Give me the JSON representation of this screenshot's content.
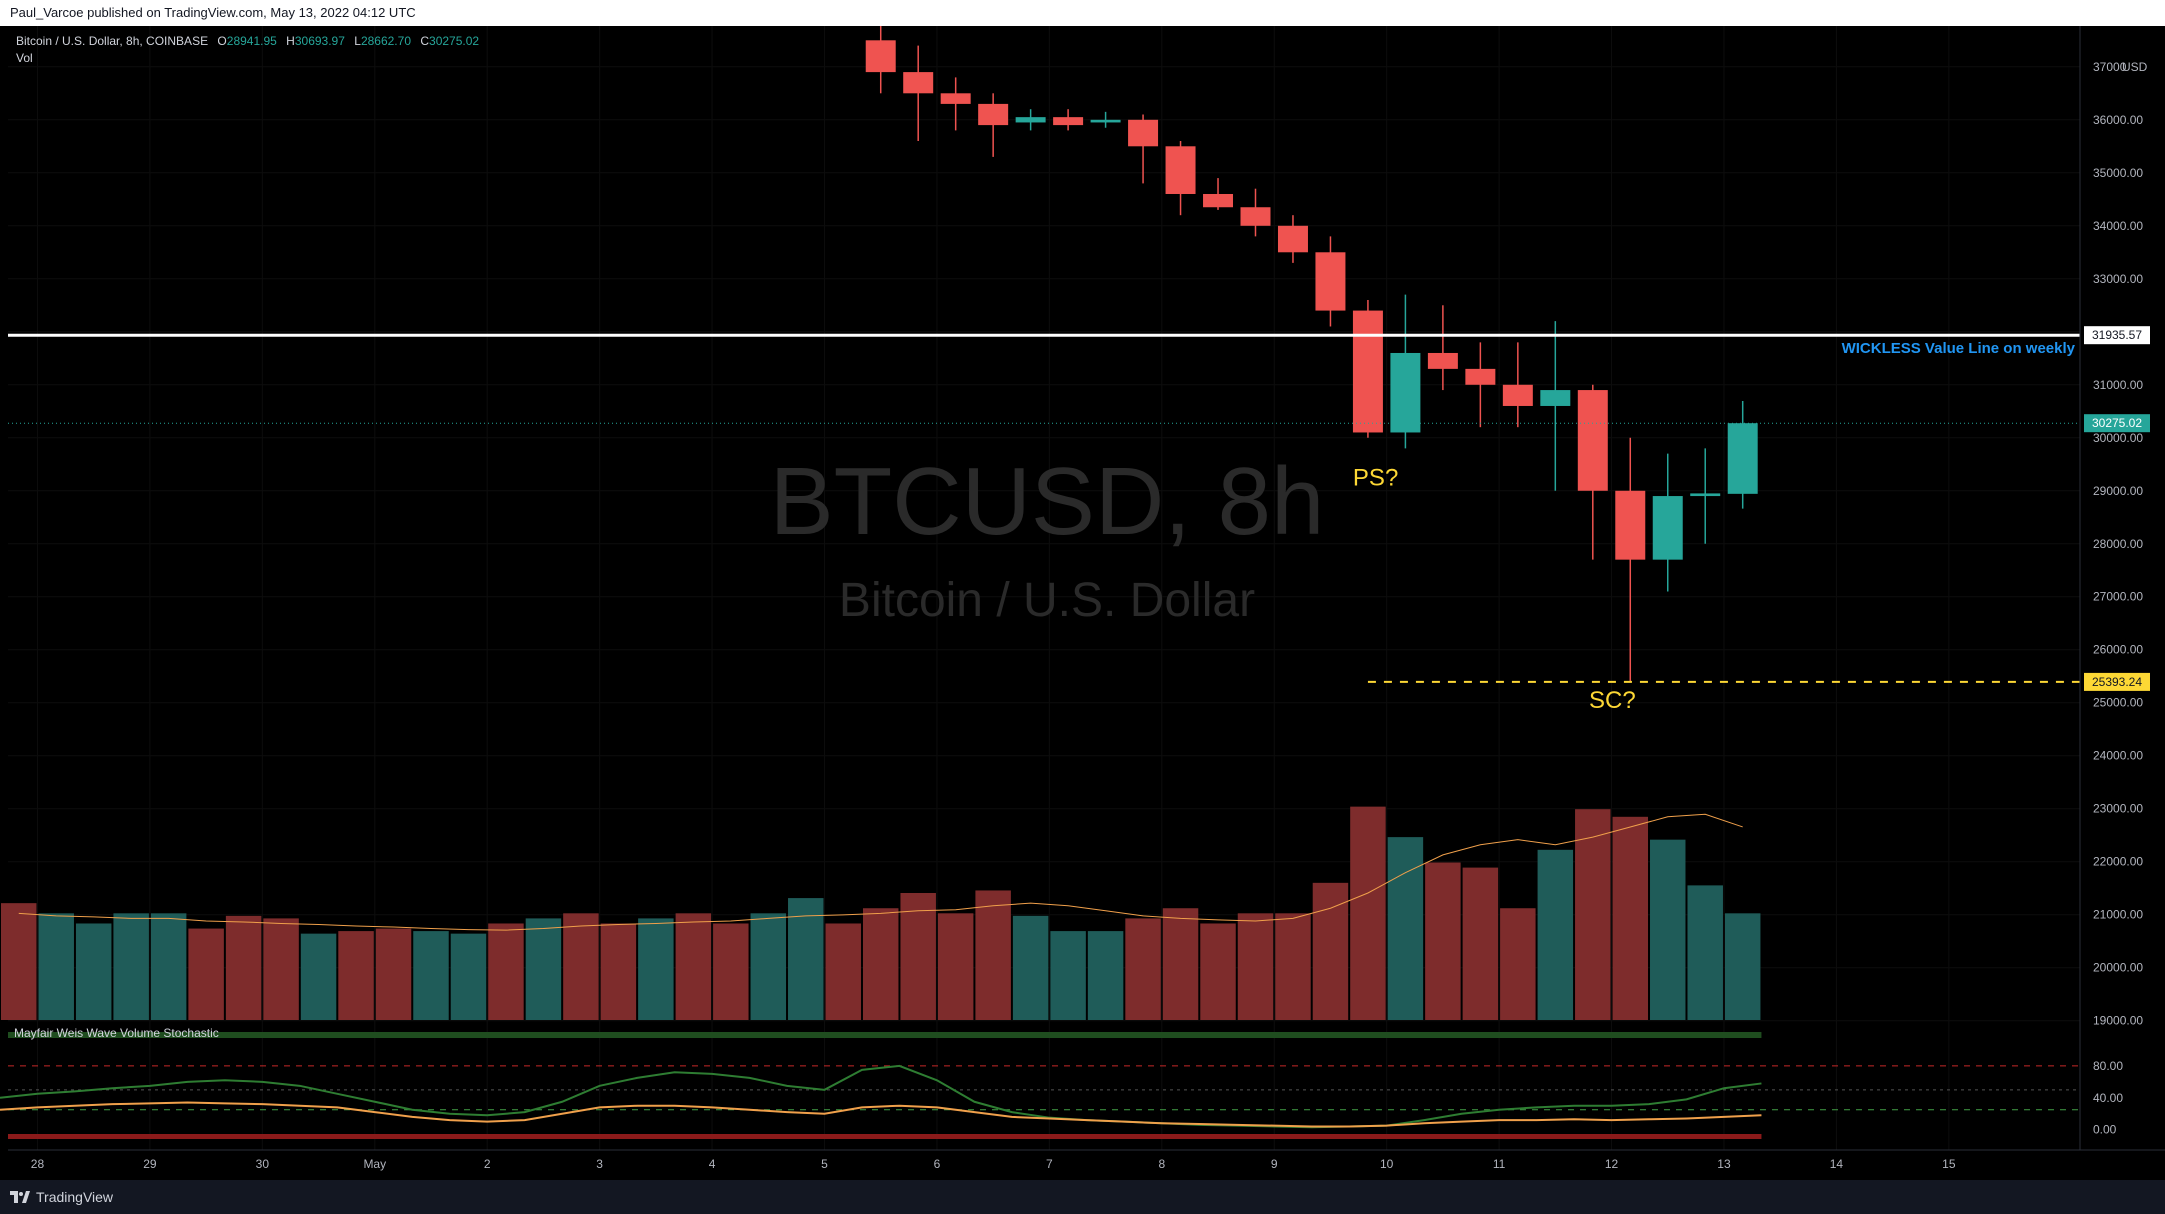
{
  "publisher_line": "Paul_Varcoe published on TradingView.com, May 13, 2022 04:12 UTC",
  "footer_brand": "TradingView",
  "colors": {
    "bull": "#26a69a",
    "bear": "#ef5350",
    "bull_vol": "#1f5c59",
    "bear_vol": "#7e2c2c",
    "vol_ma": "#f0a04b",
    "annot": "#fdd835",
    "value_line": "#ffffff",
    "blue_text": "#2196f3"
  },
  "chart_data": [
    {
      "type": "candlestick",
      "symbol_line": "Bitcoin / U.S. Dollar, 8h, COINBASE",
      "ohlc_labels": {
        "O": "28941.95",
        "H": "30693.97",
        "L": "28662.70",
        "C": "30275.02"
      },
      "watermark_title": "BTCUSD, 8h",
      "watermark_subtitle": "Bitcoin / U.S. Dollar",
      "price_axis_label": "USD",
      "y_ticks": [
        19000,
        20000,
        21000,
        22000,
        23000,
        24000,
        25000,
        26000,
        27000,
        28000,
        29000,
        30000,
        31000,
        32000,
        33000,
        34000,
        35000,
        36000,
        37000
      ],
      "y_tick_labels": [
        "19000.00",
        "20000.00",
        "21000.00",
        "22000.00",
        "23000.00",
        "24000.00",
        "25000.00",
        "26000.00",
        "27000.00",
        "28000.00",
        "29000.00",
        "30000.00",
        "31000.00",
        "32000.00",
        "33000.00",
        "34000.00",
        "35000.00",
        "36000.00",
        "37000"
      ],
      "ylim": [
        18900,
        37770
      ],
      "x_ticks": [
        {
          "label": "28",
          "x": 0.5
        },
        {
          "label": "29",
          "x": 3.5
        },
        {
          "label": "30",
          "x": 6.5
        },
        {
          "label": "May",
          "x": 9.5
        },
        {
          "label": "2",
          "x": 12.5
        },
        {
          "label": "3",
          "x": 15.5
        },
        {
          "label": "4",
          "x": 18.5
        },
        {
          "label": "5",
          "x": 21.5
        },
        {
          "label": "6",
          "x": 24.5
        },
        {
          "label": "7",
          "x": 27.5
        },
        {
          "label": "8",
          "x": 30.5
        },
        {
          "label": "9",
          "x": 33.5
        },
        {
          "label": "10",
          "x": 36.5
        },
        {
          "label": "11",
          "x": 39.5
        },
        {
          "label": "12",
          "x": 42.5
        },
        {
          "label": "13",
          "x": 45.5
        },
        {
          "label": "14",
          "x": 48.5
        },
        {
          "label": "15",
          "x": 51.5
        }
      ],
      "bar_slots": 55.5,
      "candles": [
        {
          "i": 23,
          "o": 37500,
          "h": 37800,
          "l": 36500,
          "c": 36900
        },
        {
          "i": 24,
          "o": 36900,
          "h": 37400,
          "l": 35600,
          "c": 36500
        },
        {
          "i": 25,
          "o": 36500,
          "h": 36800,
          "l": 35800,
          "c": 36300
        },
        {
          "i": 26,
          "o": 36300,
          "h": 36500,
          "l": 35300,
          "c": 35900
        },
        {
          "i": 27,
          "o": 35950,
          "h": 36200,
          "l": 35800,
          "c": 36050
        },
        {
          "i": 28,
          "o": 36050,
          "h": 36200,
          "l": 35800,
          "c": 35900
        },
        {
          "i": 29,
          "o": 35950,
          "h": 36150,
          "l": 35850,
          "c": 36000
        },
        {
          "i": 30,
          "o": 36000,
          "h": 36100,
          "l": 34800,
          "c": 35500
        },
        {
          "i": 31,
          "o": 35500,
          "h": 35600,
          "l": 34200,
          "c": 34600
        },
        {
          "i": 32,
          "o": 34600,
          "h": 34900,
          "l": 34300,
          "c": 34350
        },
        {
          "i": 33,
          "o": 34350,
          "h": 34700,
          "l": 33800,
          "c": 34000
        },
        {
          "i": 34,
          "o": 34000,
          "h": 34200,
          "l": 33300,
          "c": 33500
        },
        {
          "i": 35,
          "o": 33500,
          "h": 33800,
          "l": 32100,
          "c": 32400
        },
        {
          "i": 36,
          "o": 32400,
          "h": 32600,
          "l": 30000,
          "c": 30100
        },
        {
          "i": 37,
          "o": 30100,
          "h": 32700,
          "l": 29800,
          "c": 31600
        },
        {
          "i": 38,
          "o": 31600,
          "h": 32500,
          "l": 30900,
          "c": 31300
        },
        {
          "i": 39,
          "o": 31300,
          "h": 31800,
          "l": 30200,
          "c": 31000
        },
        {
          "i": 40,
          "o": 31000,
          "h": 31800,
          "l": 30200,
          "c": 30600
        },
        {
          "i": 41,
          "o": 30600,
          "h": 32200,
          "l": 29000,
          "c": 30900
        },
        {
          "i": 42,
          "o": 30900,
          "h": 31000,
          "l": 27700,
          "c": 29000
        },
        {
          "i": 43,
          "o": 29000,
          "h": 30000,
          "l": 25400,
          "c": 27700
        },
        {
          "i": 44,
          "o": 27700,
          "h": 29700,
          "l": 27100,
          "c": 28900
        },
        {
          "i": 45,
          "o": 28900,
          "h": 29800,
          "l": 28000,
          "c": 28950
        },
        {
          "i": 46,
          "o": 28942,
          "h": 30694,
          "l": 28663,
          "c": 30275
        }
      ],
      "value_line": {
        "price": 31935.57,
        "label": "31935.57",
        "note": "WICKLESS Value Line on weekly"
      },
      "current_price": {
        "price": 30275.02,
        "label": "30275.02"
      },
      "low_line": {
        "price": 25393.24,
        "label": "25393.24",
        "from_i": 36
      },
      "annotations": [
        {
          "text": "PS?",
          "i": 35.6,
          "price": 29100
        },
        {
          "text": "SC?",
          "i": 41.9,
          "price": 24900
        }
      ]
    },
    {
      "type": "bar",
      "title": "Vol",
      "values": [
        23,
        21,
        19,
        21,
        21,
        18,
        20.5,
        20,
        17,
        17.5,
        18,
        17.5,
        17,
        19,
        20,
        21,
        19,
        20,
        21,
        19,
        21,
        24,
        19,
        22,
        25,
        21,
        25.5,
        20.5,
        17.5,
        17.5,
        20,
        22,
        19,
        21,
        21,
        27,
        42,
        36,
        31,
        30,
        22,
        33.5,
        41.5,
        40,
        35.5,
        26.5,
        21
      ],
      "bull": [
        0,
        1,
        1,
        1,
        1,
        0,
        0,
        0,
        1,
        0,
        0,
        1,
        1,
        0,
        1,
        0,
        0,
        1,
        0,
        0,
        1,
        1,
        0,
        0,
        0,
        0,
        0,
        1,
        1,
        1,
        0,
        0,
        0,
        0,
        0,
        0,
        0,
        1,
        0,
        0,
        0,
        1,
        0,
        0,
        1,
        1,
        1
      ],
      "ma": [
        21,
        20.5,
        20.3,
        20,
        20,
        19.5,
        19.3,
        19,
        18.8,
        18.5,
        18.3,
        18,
        17.8,
        17.7,
        18,
        18.5,
        18.8,
        19,
        19.3,
        19.5,
        20,
        20.5,
        20.7,
        21,
        21.5,
        21.7,
        22.5,
        23,
        22.5,
        21.5,
        20.5,
        20,
        19.7,
        19.5,
        20,
        22,
        25,
        29,
        32.5,
        34.5,
        35.5,
        34.5,
        36,
        38,
        40,
        40.5,
        38
      ],
      "vlim": [
        0,
        50
      ]
    },
    {
      "type": "line",
      "title": "Mayfair Weis Wave Volume Stochastic",
      "y_ticks": [
        0,
        40,
        80
      ],
      "y_tick_labels": [
        "0.00",
        "40.00",
        "80.00"
      ],
      "ylim": [
        -8,
        100
      ],
      "levels": {
        "upper": 80,
        "middle": 50,
        "lower": 25
      },
      "series": [
        {
          "key": "green",
          "values": [
            40,
            45,
            48,
            52,
            55,
            60,
            62,
            60,
            55,
            45,
            35,
            25,
            20,
            18,
            22,
            35,
            55,
            65,
            72,
            70,
            65,
            55,
            50,
            75,
            80,
            62,
            35,
            22,
            15,
            12,
            10,
            8,
            6,
            5,
            4,
            3,
            4,
            5,
            12,
            20,
            25,
            28,
            30,
            30,
            32,
            38,
            52,
            58
          ]
        },
        {
          "key": "orange",
          "values": [
            25,
            28,
            30,
            32,
            33,
            34,
            33,
            32,
            30,
            28,
            22,
            16,
            12,
            10,
            12,
            20,
            28,
            30,
            30,
            28,
            25,
            22,
            20,
            28,
            30,
            28,
            22,
            16,
            14,
            12,
            10,
            8,
            7,
            6,
            5,
            4,
            4,
            5,
            8,
            10,
            12,
            12,
            13,
            12,
            13,
            14,
            16,
            18
          ]
        }
      ]
    }
  ]
}
